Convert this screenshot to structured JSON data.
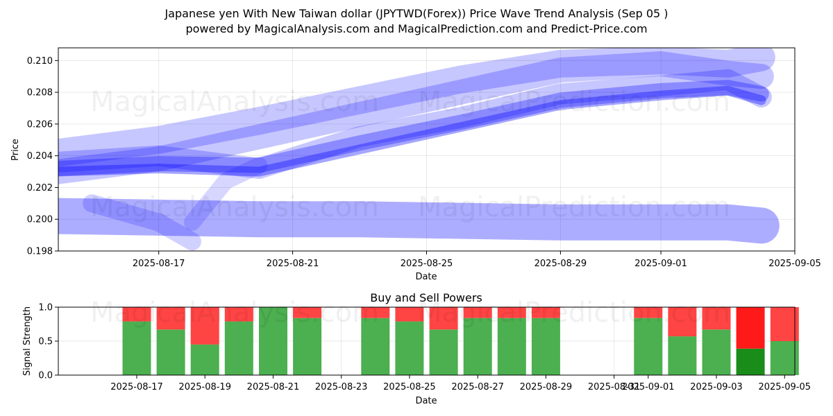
{
  "title_line1": "Japanese yen With New Taiwan dollar (JPYTWD(Forex)) Price Wave Trend Analysis (Sep 05 )",
  "title_line2": "powered by MagicalAnalysis.com and MagicalPrediction.com and Predict-Price.com",
  "watermarks": [
    "MagicalAnalysis.com",
    "MagicalPrediction.com"
  ],
  "colors": {
    "band": "#0000ff",
    "buy": "#4caf50",
    "sell": "#ff4444",
    "buy_strong": "#1a8c1a",
    "sell_strong": "#ff1a1a"
  },
  "chart_data": [
    {
      "type": "line",
      "title": "",
      "xlabel": "Date",
      "ylabel": "Price",
      "xlim": [
        "2025-08-14",
        "2025-09-05"
      ],
      "ylim": [
        0.198,
        0.2108
      ],
      "x_ticks": [
        "2025-08-17",
        "2025-08-21",
        "2025-08-25",
        "2025-08-29",
        "2025-09-01",
        "2025-09-05"
      ],
      "y_ticks": [
        0.198,
        0.2,
        0.202,
        0.204,
        0.206,
        0.208,
        0.21
      ],
      "grid": true,
      "series": [
        {
          "x": [
            "2025-08-14",
            "2025-08-17",
            "2025-08-20",
            "2025-08-23",
            "2025-08-26",
            "2025-08-29",
            "2025-09-01",
            "2025-09-03",
            "2025-09-04"
          ],
          "y": [
            0.2032,
            0.2035,
            0.2034,
            0.2048,
            0.2061,
            0.2075,
            0.2081,
            0.2083,
            0.2079
          ]
        },
        {
          "x": [
            "2025-08-14",
            "2025-08-17",
            "2025-08-20",
            "2025-08-23",
            "2025-08-26",
            "2025-08-29",
            "2025-09-01",
            "2025-09-03",
            "2025-09-04"
          ],
          "y": [
            0.2036,
            0.204,
            0.2032,
            0.2052,
            0.2064,
            0.2079,
            0.2084,
            0.2088,
            0.2077
          ]
        },
        {
          "x": [
            "2025-08-14",
            "2025-08-17",
            "2025-08-20",
            "2025-08-23",
            "2025-08-26",
            "2025-08-29",
            "2025-09-01",
            "2025-09-03",
            "2025-09-04"
          ],
          "y": [
            0.203,
            0.2032,
            0.203,
            0.2044,
            0.2058,
            0.2072,
            0.2078,
            0.2081,
            0.2075
          ]
        },
        {
          "x": [
            "2025-08-14",
            "2025-08-17",
            "2025-08-20",
            "2025-08-23",
            "2025-08-26",
            "2025-08-29",
            "2025-09-01",
            "2025-09-03",
            "2025-09-04"
          ],
          "y": [
            0.2042,
            0.205,
            0.2062,
            0.2075,
            0.2088,
            0.2098,
            0.21,
            0.2098,
            0.2102
          ]
        },
        {
          "x": [
            "2025-08-14",
            "2025-08-17",
            "2025-08-20",
            "2025-08-23",
            "2025-08-26",
            "2025-08-29",
            "2025-09-01",
            "2025-09-03",
            "2025-09-04"
          ],
          "y": [
            0.203,
            0.2038,
            0.2052,
            0.2066,
            0.208,
            0.2094,
            0.2098,
            0.2092,
            0.209
          ]
        },
        {
          "x": [
            "2025-08-15",
            "2025-08-17",
            "2025-08-18"
          ],
          "y": [
            0.201,
            0.1998,
            0.1986
          ]
        },
        {
          "x": [
            "2025-08-18",
            "2025-08-19",
            "2025-08-20"
          ],
          "y": [
            0.1998,
            0.2024,
            0.2034
          ]
        },
        {
          "x": [
            "2025-08-14",
            "2025-08-17",
            "2025-08-20",
            "2025-08-23",
            "2025-08-26",
            "2025-08-29",
            "2025-09-01",
            "2025-09-03",
            "2025-09-04"
          ],
          "y": [
            0.2002,
            0.2001,
            0.2,
            0.2,
            0.1999,
            0.1998,
            0.1998,
            0.1998,
            0.1996
          ]
        }
      ]
    },
    {
      "type": "bar",
      "title": "Buy and Sell Powers",
      "xlabel": "Date",
      "ylabel": "Signal Strength",
      "ylim": [
        0,
        1
      ],
      "y_ticks": [
        0.0,
        0.5,
        1.0
      ],
      "x_ticks": [
        "2025-08-17",
        "2025-08-19",
        "2025-08-21",
        "2025-08-23",
        "2025-08-25",
        "2025-08-27",
        "2025-08-29",
        "2025-08-31",
        "2025-09-01",
        "2025-09-03",
        "2025-09-05"
      ],
      "grid": true,
      "categories": [
        "2025-08-17",
        "2025-08-18",
        "2025-08-19",
        "2025-08-20",
        "2025-08-21",
        "2025-08-22",
        "2025-08-24",
        "2025-08-25",
        "2025-08-26",
        "2025-08-27",
        "2025-08-28",
        "2025-08-29",
        "2025-09-01",
        "2025-09-02",
        "2025-09-03",
        "2025-09-04",
        "2025-09-05"
      ],
      "series": [
        {
          "name": "",
          "values": [
            0.79,
            0.67,
            0.45,
            0.79,
            1.0,
            0.84,
            0.84,
            0.79,
            0.67,
            0.84,
            0.84,
            0.84,
            0.84,
            0.57,
            0.67,
            0.39,
            0.5
          ]
        },
        {
          "name": "",
          "values": [
            0.21,
            0.33,
            0.55,
            0.21,
            0.0,
            0.16,
            0.16,
            0.21,
            0.33,
            0.16,
            0.16,
            0.16,
            0.16,
            0.43,
            0.33,
            0.61,
            0.5
          ]
        }
      ]
    }
  ]
}
